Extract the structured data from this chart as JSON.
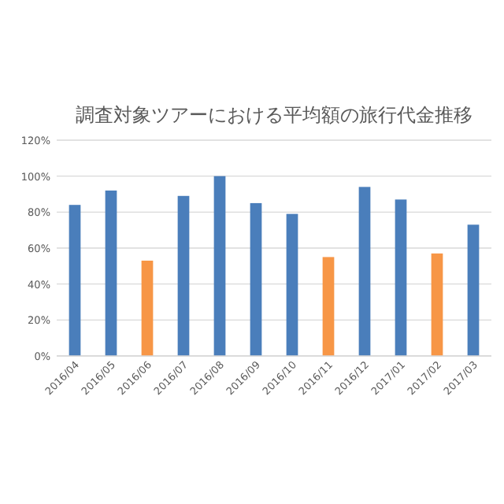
{
  "chart_data": {
    "type": "bar",
    "title": "調査対象ツアーにおける平均額の旅行代金推移",
    "categories": [
      "2016/04",
      "2016/05",
      "2016/06",
      "2016/07",
      "2016/08",
      "2016/09",
      "2016/10",
      "2016/11",
      "2016/12",
      "2017/01",
      "2017/02",
      "2017/03"
    ],
    "values": [
      84,
      92,
      53,
      89,
      100,
      85,
      79,
      55,
      94,
      87,
      57,
      73
    ],
    "colors": [
      "#4a7ebb",
      "#4a7ebb",
      "#f79646",
      "#4a7ebb",
      "#4a7ebb",
      "#4a7ebb",
      "#4a7ebb",
      "#f79646",
      "#4a7ebb",
      "#4a7ebb",
      "#f79646",
      "#4a7ebb"
    ],
    "ylim": [
      0,
      120
    ],
    "yticks": [
      {
        "value": 0,
        "label": "0%"
      },
      {
        "value": 20,
        "label": "20%"
      },
      {
        "value": 40,
        "label": "40%"
      },
      {
        "value": 60,
        "label": "60%"
      },
      {
        "value": 80,
        "label": "80%"
      },
      {
        "value": 100,
        "label": "100%"
      },
      {
        "value": 120,
        "label": "120%"
      }
    ],
    "grid": "y"
  }
}
